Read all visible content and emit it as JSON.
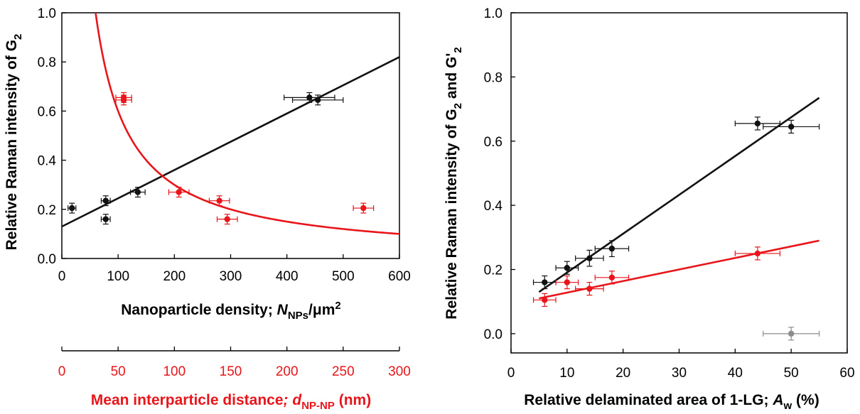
{
  "colors": {
    "black": "#111111",
    "red": "#e8151b",
    "gray": "#8c8c8c"
  },
  "chart_data": [
    {
      "type": "scatter",
      "ylabel_parts": [
        "Relative Raman intensity of G",
        "2"
      ],
      "xlabel_parts": [
        "Nanoparticle density; ",
        "N",
        "NPs",
        "/μm",
        "2"
      ],
      "x2label_parts": [
        "Mean interparticle distance",
        "; d",
        "NP-NP",
        " (nm)"
      ],
      "xlim": [
        0,
        600
      ],
      "ylim": [
        0,
        1.0
      ],
      "x2lim": [
        0,
        300
      ],
      "xticks": [
        "0",
        "100",
        "200",
        "300",
        "400",
        "500",
        "600"
      ],
      "yticks": [
        "0.0",
        "0.2",
        "0.4",
        "0.6",
        "0.8",
        "1.0"
      ],
      "x2ticks": [
        "0",
        "50",
        "100",
        "150",
        "200",
        "250",
        "300"
      ],
      "series": [
        {
          "color": "black",
          "axis": "bottom",
          "points": [
            {
              "x": 18,
              "y": 0.205,
              "xerr": 7,
              "yerr": 0.02
            },
            {
              "x": 78,
              "y": 0.235,
              "xerr": 8,
              "yerr": 0.02
            },
            {
              "x": 78,
              "y": 0.16,
              "xerr": 8,
              "yerr": 0.02
            },
            {
              "x": 135,
              "y": 0.27,
              "xerr": 13,
              "yerr": 0.02
            },
            {
              "x": 440,
              "y": 0.655,
              "xerr": 45,
              "yerr": 0.02
            },
            {
              "x": 455,
              "y": 0.645,
              "xerr": 45,
              "yerr": 0.02
            }
          ],
          "fit": {
            "kind": "linear",
            "points": [
              [
                0,
                0.13
              ],
              [
                600,
                0.82
              ]
            ]
          }
        },
        {
          "color": "red",
          "axis": "top",
          "points": [
            {
              "x": 55,
              "y": 0.655,
              "xerr": 7,
              "yerr": 0.02
            },
            {
              "x": 55,
              "y": 0.645,
              "xerr": 7,
              "yerr": 0.02
            },
            {
              "x": 104,
              "y": 0.27,
              "xerr": 9,
              "yerr": 0.02
            },
            {
              "x": 140,
              "y": 0.235,
              "xerr": 9,
              "yerr": 0.02
            },
            {
              "x": 147,
              "y": 0.16,
              "xerr": 9,
              "yerr": 0.02
            },
            {
              "x": 268,
              "y": 0.205,
              "xerr": 9,
              "yerr": 0.02
            }
          ],
          "fit": {
            "kind": "inverse",
            "k": 30,
            "xrange": [
              30,
              300
            ]
          }
        }
      ]
    },
    {
      "type": "scatter",
      "ylabel_parts": [
        "Relative Raman intensity of G",
        "2",
        " and G'",
        "2"
      ],
      "xlabel_parts": [
        "Relative delaminated area of 1-LG; ",
        "A",
        "w",
        " (%)"
      ],
      "xlim": [
        0,
        60
      ],
      "ylim": [
        -0.06,
        1.0
      ],
      "xticks": [
        "0",
        "10",
        "20",
        "30",
        "40",
        "50",
        "60"
      ],
      "yticks": [
        "0.0",
        "0.2",
        "0.4",
        "0.6",
        "0.8",
        "1.0"
      ],
      "series": [
        {
          "color": "black",
          "points": [
            {
              "x": 6,
              "y": 0.16,
              "xerr": 2,
              "yerr": 0.02
            },
            {
              "x": 10,
              "y": 0.205,
              "xerr": 2,
              "yerr": 0.02
            },
            {
              "x": 14,
              "y": 0.235,
              "xerr": 2.5,
              "yerr": 0.025
            },
            {
              "x": 18,
              "y": 0.265,
              "xerr": 3,
              "yerr": 0.025
            },
            {
              "x": 44,
              "y": 0.655,
              "xerr": 4,
              "yerr": 0.02
            },
            {
              "x": 50,
              "y": 0.645,
              "xerr": 5,
              "yerr": 0.02
            }
          ],
          "fit": {
            "kind": "linear",
            "points": [
              [
                5,
                0.13
              ],
              [
                55,
                0.735
              ]
            ]
          }
        },
        {
          "color": "red",
          "points": [
            {
              "x": 6,
              "y": 0.105,
              "xerr": 2,
              "yerr": 0.02
            },
            {
              "x": 10,
              "y": 0.16,
              "xerr": 2,
              "yerr": 0.02
            },
            {
              "x": 14,
              "y": 0.14,
              "xerr": 2.5,
              "yerr": 0.02
            },
            {
              "x": 18,
              "y": 0.175,
              "xerr": 3,
              "yerr": 0.02
            },
            {
              "x": 44,
              "y": 0.25,
              "xerr": 4,
              "yerr": 0.02
            }
          ],
          "fit": {
            "kind": "linear",
            "points": [
              [
                5,
                0.11
              ],
              [
                55,
                0.29
              ]
            ]
          }
        },
        {
          "color": "gray",
          "points": [
            {
              "x": 50,
              "y": 0.0,
              "xerr": 5,
              "yerr": 0.02
            }
          ]
        }
      ]
    }
  ]
}
